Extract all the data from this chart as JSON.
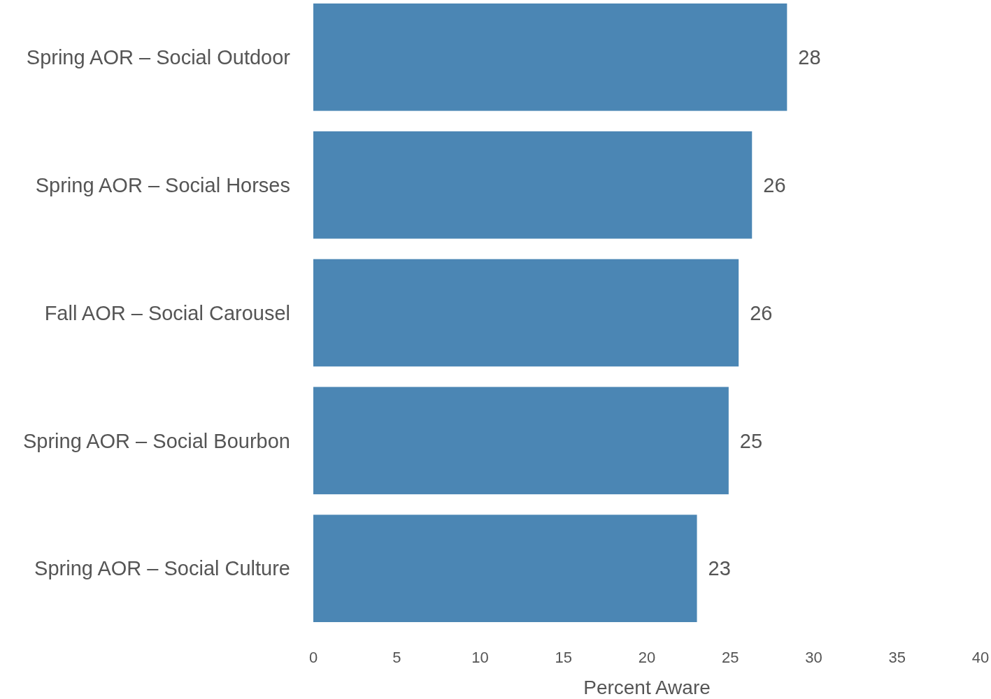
{
  "chart_data": {
    "type": "bar",
    "orientation": "horizontal",
    "categories": [
      "Spring AOR – Social Outdoor",
      "Spring AOR – Social Horses",
      "Fall AOR – Social Carousel",
      "Spring AOR – Social Bourbon",
      "Spring AOR – Social Culture"
    ],
    "values": [
      28.4,
      26.3,
      25.5,
      24.9,
      23.0
    ],
    "value_labels": [
      "28",
      "26",
      "26",
      "25",
      "23"
    ],
    "color": "#4b86b4",
    "xlim": [
      0,
      40
    ],
    "xticks": [
      0,
      5,
      10,
      15,
      20,
      25,
      30,
      35,
      40
    ],
    "xlabel": "Percent Aware",
    "grid": false
  }
}
